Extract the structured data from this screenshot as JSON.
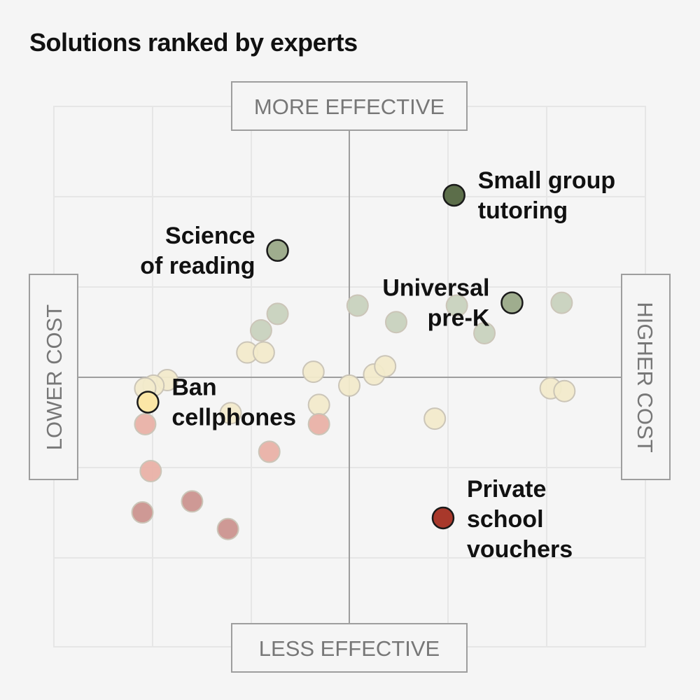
{
  "chart_data": {
    "type": "scatter",
    "title": "Solutions ranked by experts",
    "xlabel_low": "LOWER COST",
    "xlabel_high": "HIGHER COST",
    "ylabel_high": "MORE EFFECTIVE",
    "ylabel_low": "LESS EFFECTIVE",
    "xlim": [
      -1,
      1
    ],
    "ylim": [
      -1,
      1
    ],
    "grid": true,
    "colors": {
      "dark_green": "#5c6e4a",
      "mid_green": "#9fad8e",
      "light_green": "#c9d3bf",
      "cream": "#f3ebcc",
      "yellow": "#fbe6a6",
      "light_red": "#eab2a8",
      "mid_red": "#cc9590",
      "dark_red": "#a8382b"
    },
    "highlighted": [
      {
        "name": "Small group tutoring",
        "lines": [
          "Small group",
          "tutoring"
        ],
        "x": 0.38,
        "y": 0.66,
        "color": "#5c6e4a"
      },
      {
        "name": "Science of reading",
        "lines": [
          "Science",
          "of reading"
        ],
        "x": -0.26,
        "y": 0.46,
        "color": "#9fad8e"
      },
      {
        "name": "Universal pre-K",
        "lines": [
          "Universal",
          "pre-K"
        ],
        "x": 0.59,
        "y": 0.27,
        "color": "#9fad8e"
      },
      {
        "name": "Ban cellphones",
        "lines": [
          "Ban",
          "cellphones"
        ],
        "x": -0.73,
        "y": -0.09,
        "color": "#fbe6a6"
      },
      {
        "name": "Private school vouchers",
        "lines": [
          "Private",
          "school",
          "vouchers"
        ],
        "x": 0.34,
        "y": -0.51,
        "color": "#a8382b"
      }
    ],
    "points": [
      {
        "x": -0.26,
        "y": 0.23,
        "color": "#c9d3bf"
      },
      {
        "x": -0.32,
        "y": 0.17,
        "color": "#c9d3bf"
      },
      {
        "x": 0.03,
        "y": 0.26,
        "color": "#c9d3bf"
      },
      {
        "x": 0.17,
        "y": 0.2,
        "color": "#c9d3bf"
      },
      {
        "x": 0.39,
        "y": 0.26,
        "color": "#c9d3bf"
      },
      {
        "x": 0.49,
        "y": 0.16,
        "color": "#c9d3bf"
      },
      {
        "x": 0.77,
        "y": 0.27,
        "color": "#c9d3bf"
      },
      {
        "x": -0.37,
        "y": 0.09,
        "color": "#f3ebcc"
      },
      {
        "x": -0.31,
        "y": 0.09,
        "color": "#f3ebcc"
      },
      {
        "x": -0.13,
        "y": 0.02,
        "color": "#f3ebcc"
      },
      {
        "x": 0.0,
        "y": -0.03,
        "color": "#f3ebcc"
      },
      {
        "x": 0.09,
        "y": 0.01,
        "color": "#f3ebcc"
      },
      {
        "x": 0.13,
        "y": 0.04,
        "color": "#f3ebcc"
      },
      {
        "x": -0.66,
        "y": -0.01,
        "color": "#f3ebcc"
      },
      {
        "x": -0.71,
        "y": -0.03,
        "color": "#f3ebcc"
      },
      {
        "x": -0.74,
        "y": -0.04,
        "color": "#f3ebcc"
      },
      {
        "x": -0.43,
        "y": -0.13,
        "color": "#f3ebcc"
      },
      {
        "x": -0.11,
        "y": -0.1,
        "color": "#f3ebcc"
      },
      {
        "x": 0.31,
        "y": -0.15,
        "color": "#f3ebcc"
      },
      {
        "x": 0.73,
        "y": -0.04,
        "color": "#f3ebcc"
      },
      {
        "x": 0.78,
        "y": -0.05,
        "color": "#f3ebcc"
      },
      {
        "x": -0.74,
        "y": -0.17,
        "color": "#eab2a8"
      },
      {
        "x": -0.11,
        "y": -0.17,
        "color": "#eab2a8"
      },
      {
        "x": -0.29,
        "y": -0.27,
        "color": "#eab2a8"
      },
      {
        "x": -0.72,
        "y": -0.34,
        "color": "#eab2a8"
      },
      {
        "x": -0.57,
        "y": -0.45,
        "color": "#cc9590"
      },
      {
        "x": -0.75,
        "y": -0.49,
        "color": "#cc9590"
      },
      {
        "x": -0.44,
        "y": -0.55,
        "color": "#cc9590"
      }
    ]
  }
}
